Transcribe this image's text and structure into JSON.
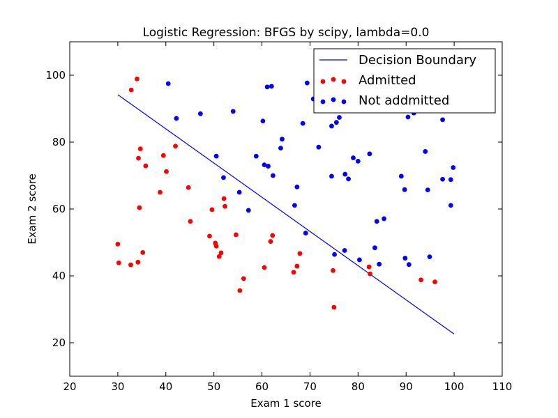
{
  "chart_data": {
    "type": "scatter",
    "title": "Logistic Regression: BFGS by scipy, lambda=0.0",
    "xlabel": "Exam 1 score",
    "ylabel": "Exam 2 score",
    "xlim": [
      20,
      110
    ],
    "ylim": [
      10,
      110
    ],
    "xticks": [
      20,
      30,
      40,
      50,
      60,
      70,
      80,
      90,
      100,
      110
    ],
    "yticks": [
      20,
      40,
      60,
      80,
      100
    ],
    "grid": false,
    "legend_position": "top-right",
    "legend": [
      {
        "label": "Decision Boundary",
        "kind": "line",
        "color": "#0000ff"
      },
      {
        "label": "Admitted",
        "kind": "points",
        "color": "#ff0000"
      },
      {
        "label": "Not addmitted",
        "kind": "points",
        "color": "#0000ff"
      }
    ],
    "series": [
      {
        "name": "Decision Boundary",
        "kind": "line",
        "color": "#0000ff",
        "points": [
          [
            30,
            94.2
          ],
          [
            100,
            22.6
          ]
        ]
      },
      {
        "name": "Admitted",
        "kind": "scatter",
        "color": "#ff0000",
        "points": [
          [
            30.0,
            49.5
          ],
          [
            30.2,
            43.9
          ],
          [
            32.7,
            43.3
          ],
          [
            32.8,
            95.6
          ],
          [
            34.0,
            98.9
          ],
          [
            34.2,
            44.1
          ],
          [
            34.3,
            75.2
          ],
          [
            34.5,
            60.4
          ],
          [
            34.7,
            78.0
          ],
          [
            35.2,
            47.0
          ],
          [
            35.8,
            72.9
          ],
          [
            38.8,
            65.0
          ],
          [
            39.5,
            76.0
          ],
          [
            40.1,
            71.2
          ],
          [
            42.0,
            78.8
          ],
          [
            44.7,
            66.4
          ],
          [
            45.1,
            56.3
          ],
          [
            49.1,
            51.9
          ],
          [
            49.6,
            59.8
          ],
          [
            50.3,
            49.8
          ],
          [
            50.5,
            48.9
          ],
          [
            51.1,
            45.8
          ],
          [
            51.5,
            46.9
          ],
          [
            52.1,
            63.1
          ],
          [
            52.3,
            60.8
          ],
          [
            54.6,
            52.3
          ],
          [
            55.4,
            35.6
          ],
          [
            56.2,
            39.2
          ],
          [
            60.5,
            42.5
          ],
          [
            61.8,
            50.3
          ],
          [
            62.2,
            52.1
          ],
          [
            66.6,
            41.1
          ],
          [
            67.3,
            42.9
          ],
          [
            67.9,
            46.7
          ],
          [
            74.8,
            41.6
          ],
          [
            75.0,
            30.6
          ],
          [
            82.3,
            42.7
          ],
          [
            82.5,
            40.6
          ],
          [
            93.1,
            38.8
          ],
          [
            96.0,
            38.2
          ]
        ]
      },
      {
        "name": "Not addmitted",
        "kind": "scatter",
        "color": "#0000ff",
        "points": [
          [
            40.5,
            97.5
          ],
          [
            42.2,
            87.1
          ],
          [
            47.2,
            88.5
          ],
          [
            50.5,
            75.8
          ],
          [
            52.0,
            69.4
          ],
          [
            54.0,
            89.2
          ],
          [
            55.3,
            65.0
          ],
          [
            57.2,
            59.6
          ],
          [
            58.8,
            75.8
          ],
          [
            60.2,
            86.3
          ],
          [
            60.5,
            73.2
          ],
          [
            61.1,
            96.5
          ],
          [
            61.3,
            72.8
          ],
          [
            62.0,
            96.7
          ],
          [
            62.3,
            70.0
          ],
          [
            63.9,
            78.2
          ],
          [
            64.2,
            80.9
          ],
          [
            66.8,
            61.1
          ],
          [
            67.3,
            66.6
          ],
          [
            68.5,
            85.6
          ],
          [
            69.1,
            52.8
          ],
          [
            69.4,
            97.7
          ],
          [
            70.7,
            92.9
          ],
          [
            71.8,
            78.5
          ],
          [
            74.5,
            84.8
          ],
          [
            74.5,
            69.8
          ],
          [
            75.1,
            46.4
          ],
          [
            75.5,
            85.9
          ],
          [
            76.1,
            87.4
          ],
          [
            77.2,
            47.6
          ],
          [
            77.3,
            70.4
          ],
          [
            78.0,
            69.0
          ],
          [
            79.0,
            75.3
          ],
          [
            80.0,
            74.3
          ],
          [
            80.3,
            44.8
          ],
          [
            82.4,
            76.5
          ],
          [
            83.5,
            48.4
          ],
          [
            83.9,
            56.3
          ],
          [
            84.4,
            43.5
          ],
          [
            85.4,
            57.1
          ],
          [
            89.0,
            69.8
          ],
          [
            89.7,
            65.8
          ],
          [
            89.8,
            45.3
          ],
          [
            90.4,
            87.5
          ],
          [
            90.6,
            43.4
          ],
          [
            91.6,
            88.7
          ],
          [
            94.0,
            77.2
          ],
          [
            94.5,
            65.7
          ],
          [
            94.9,
            45.7
          ],
          [
            97.6,
            86.7
          ],
          [
            97.6,
            68.9
          ],
          [
            99.3,
            68.8
          ],
          [
            99.3,
            61.1
          ],
          [
            99.8,
            72.4
          ]
        ]
      }
    ]
  }
}
